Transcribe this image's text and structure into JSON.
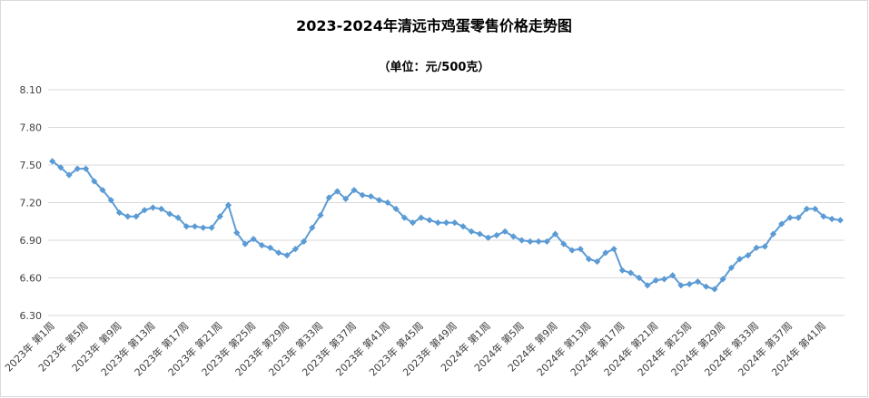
{
  "chart_data": {
    "type": "line",
    "title": "2023-2024年清远市鸡蛋零售价格走势图",
    "subtitle": "（单位：元/500克）",
    "categories": [
      "2023年 第1周",
      null,
      null,
      null,
      "2023年 第5周",
      null,
      null,
      null,
      "2023年 第9周",
      null,
      null,
      null,
      "2023年 第13周",
      null,
      null,
      null,
      "2023年 第17周",
      null,
      null,
      null,
      "2023年 第21周",
      null,
      null,
      null,
      "2023年 第25周",
      null,
      null,
      null,
      "2023年 第29周",
      null,
      null,
      null,
      "2023年 第33周",
      null,
      null,
      null,
      "2023年 第37周",
      null,
      null,
      null,
      "2023年 第41周",
      null,
      null,
      null,
      "2023年 第45周",
      null,
      null,
      null,
      "2023年 第49周",
      null,
      null,
      null,
      "2024年 第1周",
      null,
      null,
      null,
      "2024年 第5周",
      null,
      null,
      null,
      "2024年 第9周",
      null,
      null,
      null,
      "2024年 第13周",
      null,
      null,
      null,
      "2024年 第17周",
      null,
      null,
      null,
      "2024年 第21周",
      null,
      null,
      null,
      "2024年 第25周",
      null,
      null,
      null,
      "2024年 第29周",
      null,
      null,
      null,
      "2024年 第33周",
      null,
      null,
      null,
      "2024年 第37周",
      null,
      null,
      null,
      "2024年 第41周",
      null,
      null
    ],
    "series": [
      {
        "color": "#5b9bd5",
        "values": [
          7.53,
          7.48,
          7.42,
          7.47,
          7.47,
          7.37,
          7.3,
          7.22,
          7.12,
          7.09,
          7.09,
          7.14,
          7.16,
          7.15,
          7.11,
          7.08,
          7.01,
          7.01,
          7.0,
          7.0,
          7.09,
          7.18,
          6.96,
          6.87,
          6.91,
          6.86,
          6.84,
          6.8,
          6.78,
          6.83,
          6.89,
          7.0,
          7.1,
          7.24,
          7.29,
          7.23,
          7.3,
          7.26,
          7.25,
          7.22,
          7.2,
          7.15,
          7.08,
          7.04,
          7.08,
          7.06,
          7.04,
          7.04,
          7.04,
          7.01,
          6.97,
          6.95,
          6.92,
          6.94,
          6.97,
          6.93,
          6.9,
          6.89,
          6.89,
          6.89,
          6.95,
          6.87,
          6.82,
          6.83,
          6.75,
          6.73,
          6.8,
          6.83,
          6.66,
          6.64,
          6.6,
          6.54,
          6.58,
          6.59,
          6.62,
          6.54,
          6.55,
          6.57,
          6.53,
          6.51,
          6.59,
          6.68,
          6.75,
          6.78,
          6.84,
          6.85,
          6.95,
          7.03,
          7.08,
          7.08,
          7.15,
          7.15,
          7.09,
          7.07,
          7.06
        ]
      }
    ],
    "ylim": [
      6.3,
      8.1
    ],
    "yticks": [
      {
        "value": 6.3,
        "label": "6.30"
      },
      {
        "value": 6.6,
        "label": "6.60"
      },
      {
        "value": 6.9,
        "label": "6.90"
      },
      {
        "value": 7.2,
        "label": "7.20"
      },
      {
        "value": 7.5,
        "label": "7.50"
      },
      {
        "value": 7.8,
        "label": "7.80"
      },
      {
        "value": 8.1,
        "label": "8.10"
      }
    ],
    "grid": true
  }
}
